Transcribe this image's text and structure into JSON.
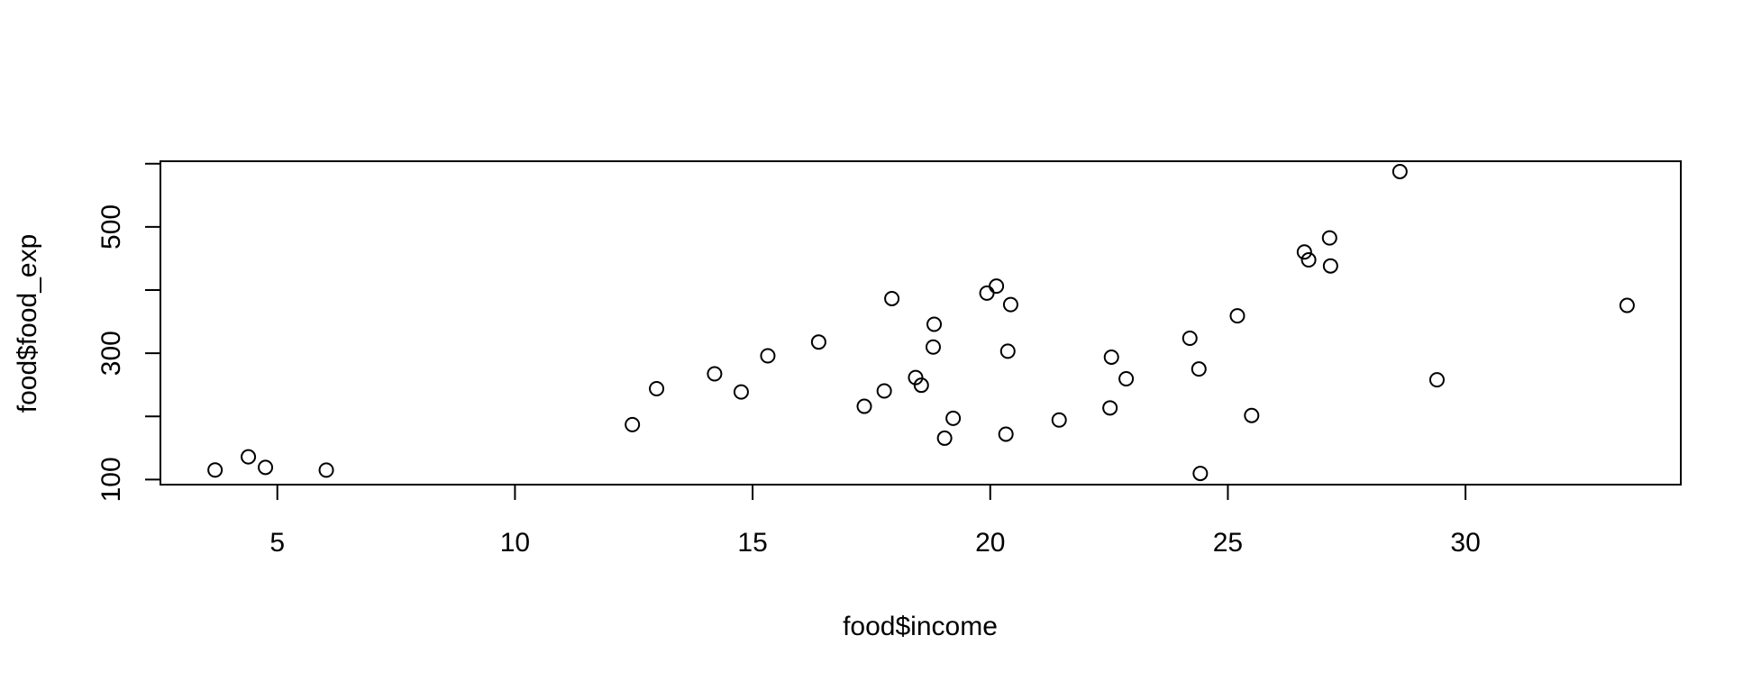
{
  "chart_data": {
    "type": "scatter",
    "title": "",
    "xlabel": "food$income",
    "ylabel": "food$food_exp",
    "xlim": [
      2.54,
      34.53
    ],
    "ylim": [
      92,
      604
    ],
    "xticks": [
      5,
      10,
      15,
      20,
      25,
      30
    ],
    "yticks": [
      100,
      300,
      500
    ],
    "ytick_minor": [
      200,
      400,
      600
    ],
    "grid": false,
    "legend": "none",
    "marker": "open-circle",
    "color": "#000000",
    "points": [
      {
        "x": 3.69,
        "y": 115.2
      },
      {
        "x": 4.39,
        "y": 135.98
      },
      {
        "x": 4.75,
        "y": 119.34
      },
      {
        "x": 6.03,
        "y": 114.96
      },
      {
        "x": 12.47,
        "y": 187.05
      },
      {
        "x": 12.98,
        "y": 243.92
      },
      {
        "x": 14.2,
        "y": 267.43
      },
      {
        "x": 14.76,
        "y": 238.71
      },
      {
        "x": 15.32,
        "y": 295.94
      },
      {
        "x": 16.39,
        "y": 317.78
      },
      {
        "x": 17.35,
        "y": 216.0
      },
      {
        "x": 17.77,
        "y": 240.35
      },
      {
        "x": 17.93,
        "y": 386.57
      },
      {
        "x": 18.43,
        "y": 261.53
      },
      {
        "x": 18.55,
        "y": 249.34
      },
      {
        "x": 18.8,
        "y": 309.87
      },
      {
        "x": 18.82,
        "y": 345.89
      },
      {
        "x": 19.04,
        "y": 165.54
      },
      {
        "x": 19.22,
        "y": 196.98
      },
      {
        "x": 19.93,
        "y": 395.26
      },
      {
        "x": 20.13,
        "y": 406.34
      },
      {
        "x": 20.33,
        "y": 171.92
      },
      {
        "x": 20.37,
        "y": 303.23
      },
      {
        "x": 20.43,
        "y": 377.04
      },
      {
        "x": 21.45,
        "y": 194.35
      },
      {
        "x": 22.52,
        "y": 213.48
      },
      {
        "x": 22.55,
        "y": 293.87
      },
      {
        "x": 22.86,
        "y": 259.61
      },
      {
        "x": 24.2,
        "y": 323.71
      },
      {
        "x": 24.39,
        "y": 275.02
      },
      {
        "x": 24.42,
        "y": 109.71
      },
      {
        "x": 25.2,
        "y": 359.19
      },
      {
        "x": 25.5,
        "y": 201.51
      },
      {
        "x": 26.61,
        "y": 460.36
      },
      {
        "x": 26.7,
        "y": 447.76
      },
      {
        "x": 27.14,
        "y": 482.55
      },
      {
        "x": 27.16,
        "y": 438.29
      },
      {
        "x": 28.62,
        "y": 587.66
      },
      {
        "x": 29.4,
        "y": 257.95
      },
      {
        "x": 33.4,
        "y": 375.73
      }
    ]
  }
}
